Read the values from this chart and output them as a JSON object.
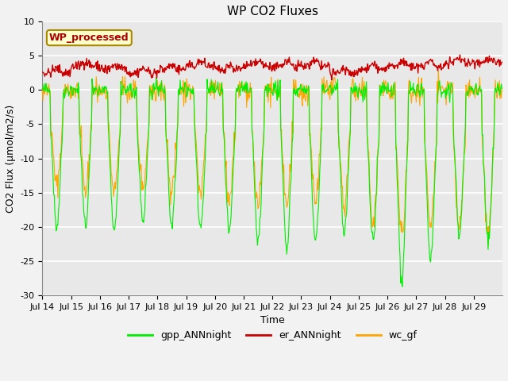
{
  "title": "WP CO2 Fluxes",
  "xlabel": "Time",
  "ylabel": "CO2 Flux (μmol/m2/s)",
  "ylim": [
    -30,
    10
  ],
  "yticks": [
    -30,
    -25,
    -20,
    -15,
    -10,
    -5,
    0,
    5,
    10
  ],
  "x_tick_labels": [
    "Jul 14",
    "Jul 15",
    "Jul 16",
    "Jul 17",
    "Jul 18",
    "Jul 19",
    "Jul 20",
    "Jul 21",
    "Jul 22",
    "Jul 23",
    "Jul 24",
    "Jul 25",
    "Jul 26",
    "Jul 27",
    "Jul 28",
    "Jul 29"
  ],
  "legend_labels": [
    "gpp_ANNnight",
    "er_ANNnight",
    "wc_gf"
  ],
  "legend_colors": [
    "#00EE00",
    "#CC0000",
    "#FFA500"
  ],
  "watermark_text": "WP_processed",
  "watermark_bg": "#FFFFCC",
  "watermark_border": "#AA8800",
  "watermark_text_color": "#AA0000",
  "plot_bg": "#E8E8E8",
  "fig_bg": "#F2F2F2",
  "grid_color": "#FFFFFF",
  "line_colors": {
    "gpp": "#00EE00",
    "er": "#CC0000",
    "wc": "#FFA500"
  },
  "seed": 42,
  "n_points_per_day": 48,
  "n_days": 16,
  "gpp_peaks": [
    -20,
    -20,
    -21,
    -19,
    -20,
    -20,
    -21,
    -22,
    -23,
    -22,
    -21,
    -22,
    -28,
    -25,
    -21,
    -22
  ],
  "wc_peaks": [
    -14,
    -15,
    -15,
    -14,
    -15,
    -15,
    -16,
    -17,
    -17,
    -16,
    -17,
    -20,
    -21,
    -20,
    -20,
    -21
  ],
  "er_base": [
    2.5,
    3.5,
    3.0,
    2.5,
    3.0,
    3.5,
    3.0,
    3.5,
    3.5,
    3.5,
    2.5,
    3.0,
    3.5,
    3.5,
    4.0,
    4.0
  ],
  "title_fontsize": 11,
  "axis_label_fontsize": 9,
  "tick_fontsize": 8,
  "legend_fontsize": 9
}
